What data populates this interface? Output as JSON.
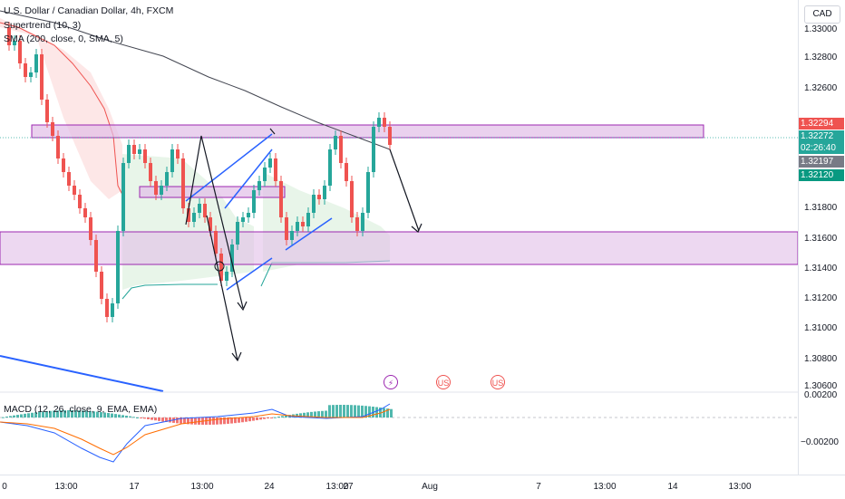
{
  "legend": {
    "title": "U.S. Dollar / Canadian Dollar, 4h, FXCM",
    "supertrend": "Supertrend (10, 3)",
    "sma": "SMA (200, close, 0, SMA, 5)",
    "macd": "MACD (12, 26, close, 9, EMA, EMA)"
  },
  "currency": "CAD",
  "price_axis": {
    "labels": [
      "1.33000",
      "1.32800",
      "1.32600",
      "1.31800",
      "1.31600",
      "1.31400",
      "1.31200",
      "1.31000",
      "1.30800",
      "1.30600",
      "0.00200",
      "−0.00200"
    ],
    "tags": {
      "upper": "1.32294",
      "current": "1.32272",
      "countdown": "02:26:40",
      "mid": "1.32197",
      "lower": "1.32120"
    }
  },
  "time_axis": {
    "labels": [
      "0",
      "13:00",
      "17",
      "13:00",
      "24",
      "13:00",
      "27",
      "Aug",
      "7",
      "13:00",
      "14",
      "13:00"
    ]
  },
  "events": {
    "lightning": "⚡",
    "flag": "US"
  },
  "colors": {
    "up": "#26a69a",
    "down": "#ef5350",
    "zone": "#e1bee7",
    "zone_border": "#9c27b0",
    "trendline": "#2962ff",
    "sma": "#434651",
    "macd": "#2962ff",
    "signal": "#ff6d00"
  }
}
